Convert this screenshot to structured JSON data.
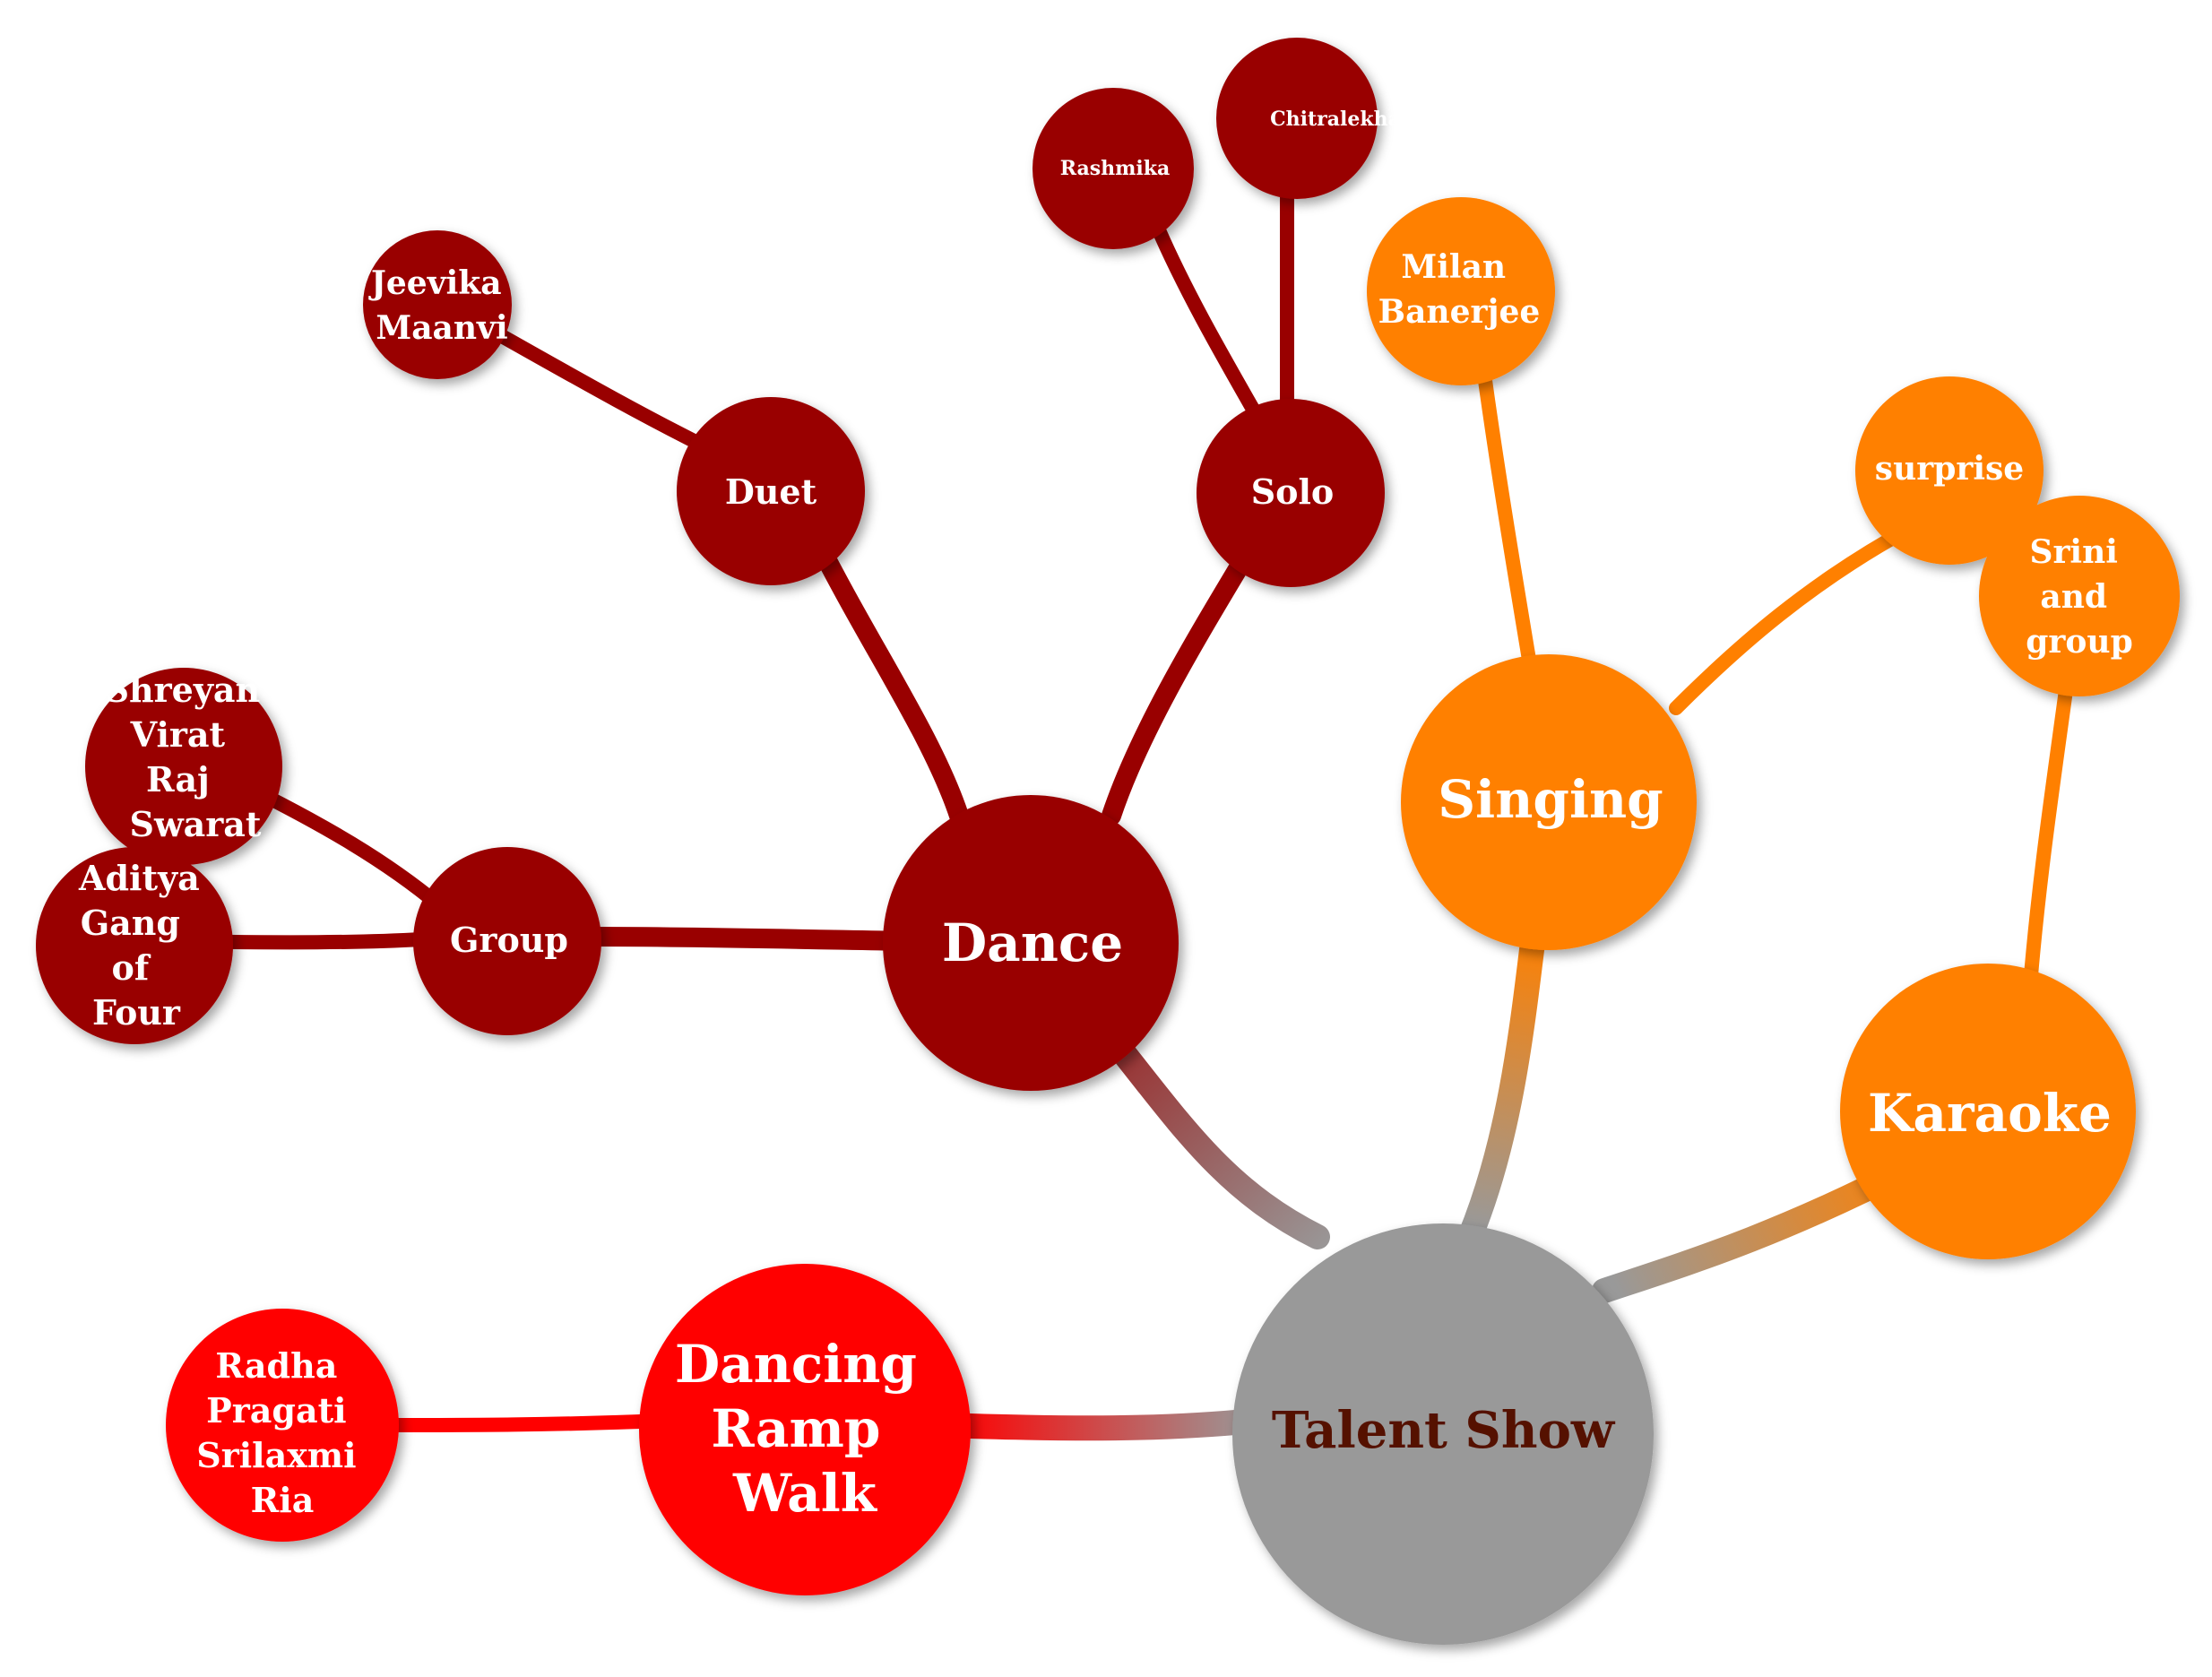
{
  "colors": {
    "root": "#999999",
    "dance": "#990000",
    "singing": "#ff8000",
    "karaoke": "#ff8000",
    "ramp": "#ff0000",
    "root_text": "#551100",
    "node_text": "#ffffff"
  },
  "root": {
    "label": "Talent Show"
  },
  "dance": {
    "label": "Dance",
    "group": {
      "label": "Group",
      "members_a": [
        "Shreyan",
        "Virat",
        "Raj",
        "Swarat"
      ],
      "members_b": [
        "Aditya",
        "Gang",
        "of",
        "Four"
      ]
    },
    "duet": {
      "label": "Duet",
      "members": [
        "Jeevika",
        "Maanvi"
      ]
    },
    "solo": {
      "label": "Solo",
      "performer_1": "Rashmika",
      "performer_2": "Chitralekha"
    }
  },
  "singing": {
    "label": "Singing",
    "performer_1": [
      "Milan",
      "Banerjee"
    ],
    "performer_2": "surprise"
  },
  "karaoke": {
    "label": "Karaoke",
    "performer": [
      "Srini",
      "and",
      "group"
    ]
  },
  "ramp": {
    "label": [
      "Dancing",
      "Ramp",
      "Walk"
    ],
    "members": [
      "Radha",
      "Pragati",
      "Srilaxmi",
      "Ria"
    ]
  }
}
